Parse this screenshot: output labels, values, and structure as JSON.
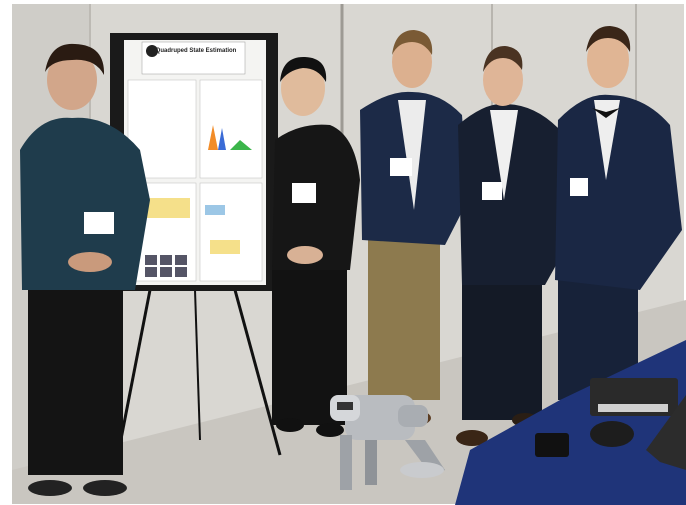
{
  "poster": {
    "title": "Quadruped State Estimation"
  }
}
